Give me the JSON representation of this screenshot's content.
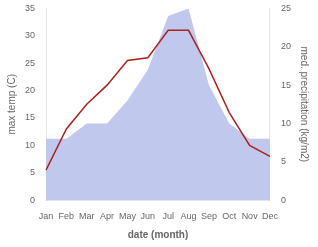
{
  "chart_data": {
    "type": "line",
    "categories": [
      "Jan",
      "Feb",
      "Mar",
      "Apr",
      "May",
      "Jun",
      "Jul",
      "Aug",
      "Sep",
      "Oct",
      "Nov",
      "Dec"
    ],
    "series": [
      {
        "type": "area",
        "color": "#c0c8ee",
        "axis": "y2",
        "values": [
          8,
          8,
          10,
          10,
          13,
          17,
          24,
          25,
          15,
          10,
          8,
          8
        ]
      },
      {
        "type": "line",
        "color": "#aa2222",
        "values": [
          5.5,
          13.0,
          17.5,
          21.0,
          25.5,
          26.0,
          31.0,
          31.0,
          24.0,
          16.0,
          10.0,
          8.0
        ]
      }
    ],
    "xlabel": "date (month)",
    "ylabel": "max temp (C)",
    "y2label": "med. precipitation (kg/m2)",
    "ylim": [
      0,
      35
    ],
    "yticks": [
      0,
      5,
      10,
      15,
      20,
      25,
      30,
      35
    ],
    "y2lim": [
      0,
      25
    ],
    "y2ticks": [
      0,
      5,
      10,
      15,
      20,
      25
    ],
    "grid": false
  }
}
